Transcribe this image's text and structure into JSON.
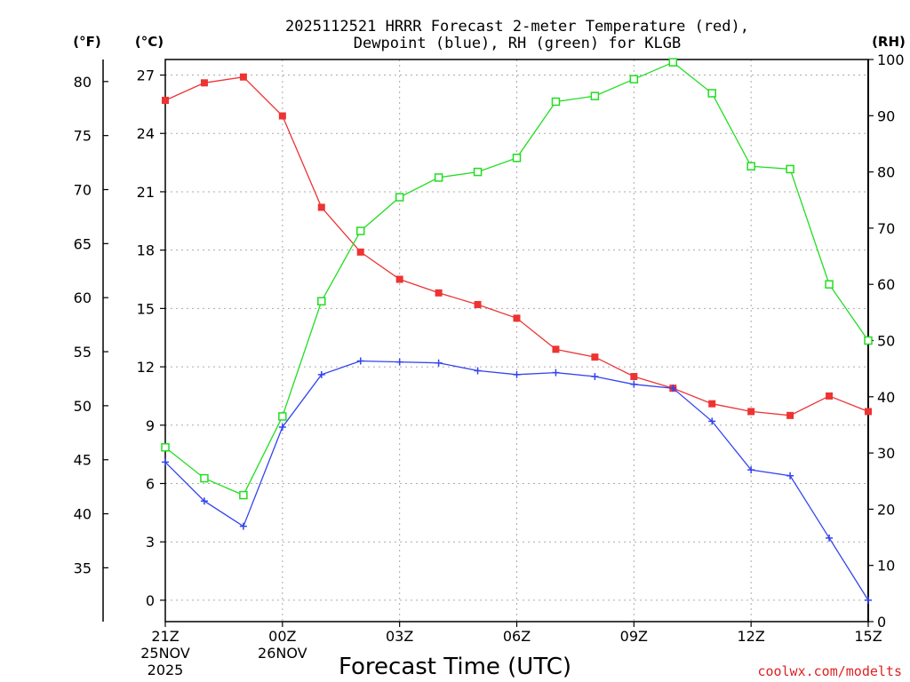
{
  "chart_data": {
    "type": "line",
    "title_line1": "2025112521 HRRR Forecast 2-meter Temperature (red),",
    "title_line2": "Dewpoint (blue), RH (green) for KLGB",
    "xlabel": "Forecast Time (UTC)",
    "credit": "coolwx.com/modelts",
    "axis_units": {
      "fahrenheit": "(°F)",
      "celsius": "(°C)",
      "rh": "(RH)"
    },
    "colors": {
      "temperature": "#ee3333",
      "dewpoint": "#3344ee",
      "rh": "#22dd22",
      "grid": "#aaaaaa"
    },
    "x_hours": [
      0,
      1,
      2,
      3,
      4,
      5,
      6,
      7,
      8,
      9,
      10,
      11,
      12,
      13,
      14,
      15,
      16,
      17,
      18
    ],
    "x_ticks": [
      {
        "hour": 0,
        "label": "21Z",
        "date": "25NOV",
        "year": "2025"
      },
      {
        "hour": 3,
        "label": "00Z",
        "date": "26NOV",
        "year": ""
      },
      {
        "hour": 6,
        "label": "03Z",
        "date": "",
        "year": ""
      },
      {
        "hour": 9,
        "label": "06Z",
        "date": "",
        "year": ""
      },
      {
        "hour": 12,
        "label": "09Z",
        "date": "",
        "year": ""
      },
      {
        "hour": 15,
        "label": "12Z",
        "date": "",
        "year": ""
      },
      {
        "hour": 18,
        "label": "15Z",
        "date": "",
        "year": ""
      }
    ],
    "celsius_ticks": [
      0,
      3,
      6,
      9,
      12,
      15,
      18,
      21,
      24,
      27
    ],
    "fahrenheit_ticks": [
      35,
      40,
      45,
      50,
      55,
      60,
      65,
      70,
      75,
      80
    ],
    "rh_ticks": [
      0,
      10,
      20,
      30,
      40,
      50,
      60,
      70,
      80,
      90,
      100
    ],
    "ylim_celsius": [
      -1.1,
      27.8
    ],
    "ylim_rh": [
      0,
      100
    ],
    "series": [
      {
        "name": "Temperature",
        "unit": "C",
        "marker": "filled-square",
        "values": [
          25.7,
          26.6,
          26.9,
          24.9,
          20.2,
          17.9,
          16.5,
          15.8,
          15.2,
          14.5,
          12.9,
          12.5,
          11.5,
          10.9,
          10.1,
          9.7,
          9.5,
          10.5,
          9.7
        ]
      },
      {
        "name": "Dewpoint",
        "unit": "C",
        "marker": "plus",
        "values": [
          7.1,
          5.1,
          3.8,
          8.9,
          11.6,
          12.3,
          12.25,
          12.2,
          11.8,
          11.6,
          11.7,
          11.5,
          11.1,
          10.9,
          9.2,
          6.7,
          6.4,
          3.2,
          0.0
        ]
      },
      {
        "name": "RH",
        "unit": "%",
        "marker": "open-square",
        "values": [
          31.0,
          25.5,
          22.5,
          36.5,
          57.0,
          69.5,
          75.5,
          79.0,
          80.0,
          82.5,
          92.5,
          93.5,
          96.5,
          99.5,
          94.0,
          81.0,
          80.5,
          60.0,
          50.0
        ]
      }
    ]
  }
}
